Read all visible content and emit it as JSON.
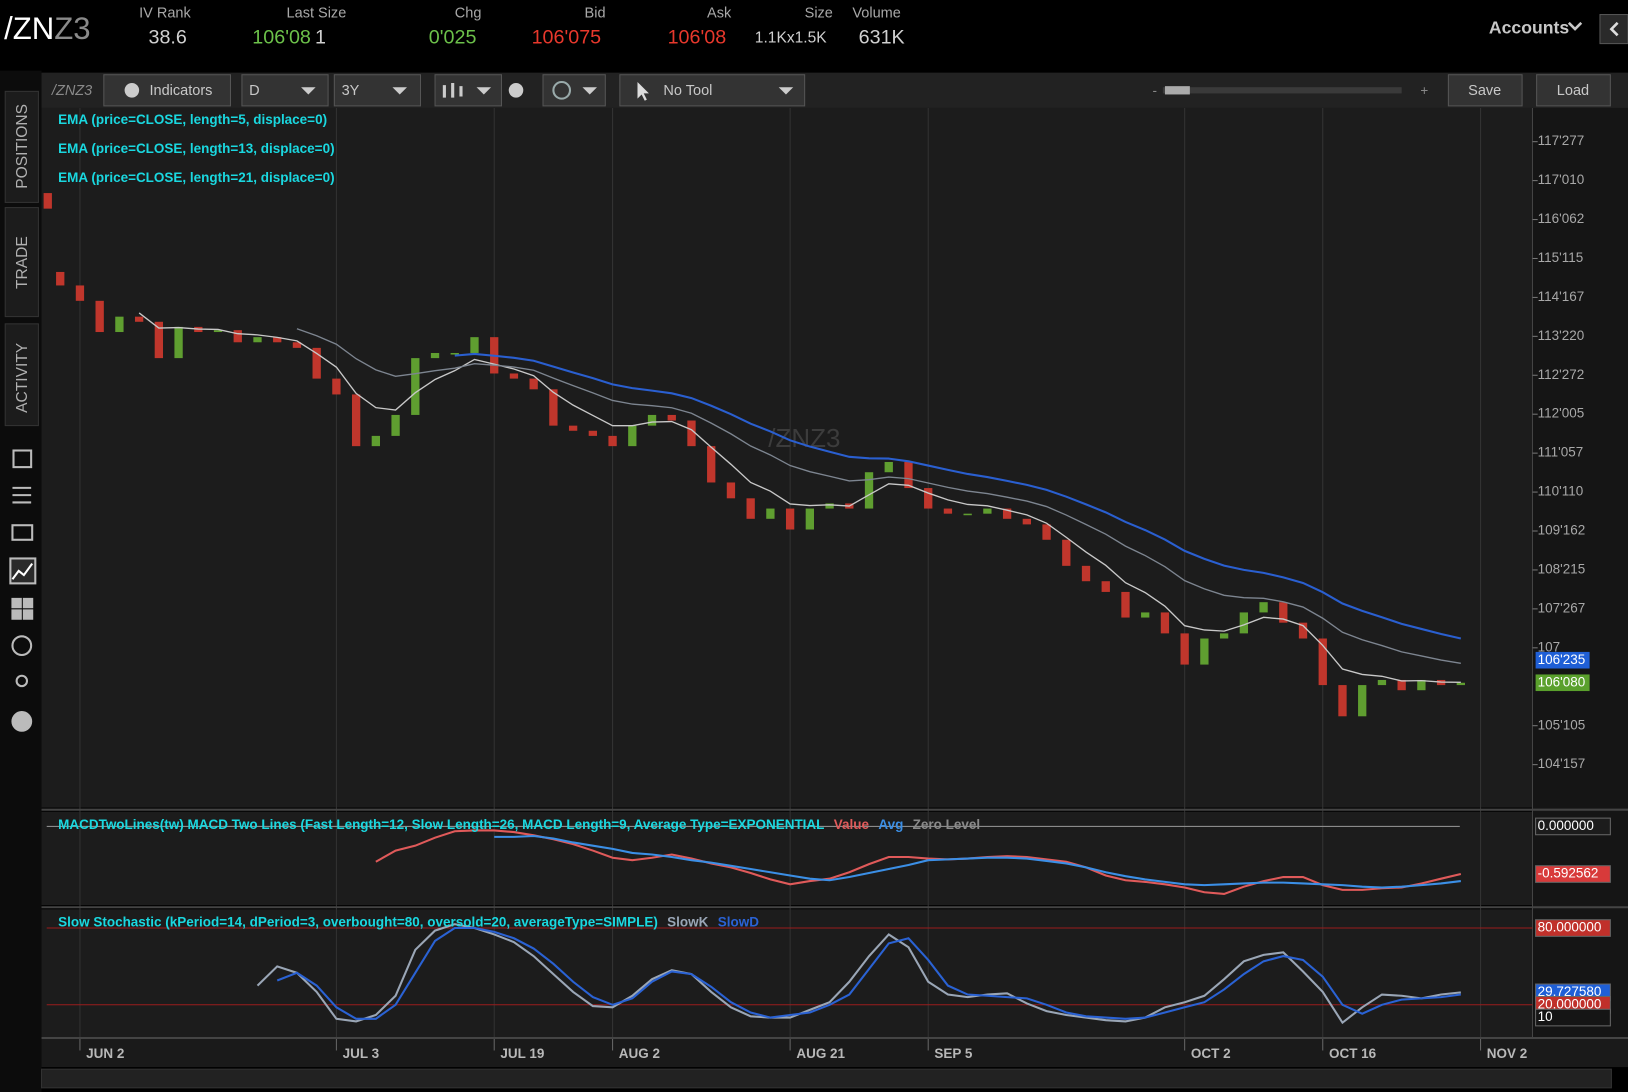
{
  "header": {
    "symbol": "/ZN",
    "symbol_suffix": "Z3",
    "fields": [
      {
        "label": "IV Rank",
        "value": "38.6"
      },
      {
        "label": "Last Size",
        "value": "106'08",
        "extra": "1"
      },
      {
        "label": "Chg",
        "value": "0'025"
      },
      {
        "label": "Bid",
        "value": "106'075"
      },
      {
        "label": "Ask",
        "value": "106'08"
      },
      {
        "label": "Size",
        "value": "1.1Kx1.5K"
      },
      {
        "label": "Volume",
        "value": "631K"
      }
    ],
    "accounts": "Accounts"
  },
  "toolbar": {
    "symbol": "/ZNZ3",
    "indicators": "Indicators",
    "aggregation": "D",
    "timeframe": "3Y",
    "tool": "No Tool",
    "zoom_out": "-",
    "zoom_in": "+",
    "save": "Save",
    "load": "Load"
  },
  "side_tabs": [
    "POSITIONS",
    "TRADE",
    "ACTIVITY"
  ],
  "chart_data": [
    {
      "type": "candlestick",
      "watermark": "/ZNZ3",
      "categories": [
        null,
        "JUN 2",
        null,
        null,
        null,
        null,
        null,
        null,
        null,
        null,
        null,
        null,
        null,
        null,
        "JUL 3",
        null,
        null,
        null,
        null,
        null,
        null,
        null,
        "JUL 19",
        null,
        null,
        null,
        null,
        null,
        "AUG 2",
        null,
        null,
        null,
        null,
        null,
        null,
        null,
        null,
        "AUG 21",
        null,
        null,
        null,
        null,
        null,
        null,
        "SEP 5",
        null,
        null,
        null,
        null,
        null,
        null,
        null,
        null,
        null,
        null,
        null,
        null,
        "OCT 2",
        null,
        null,
        null,
        null,
        null,
        null,
        "OCT 16",
        null,
        null,
        null,
        null,
        null,
        null,
        null,
        "NOV 2"
      ],
      "open": [
        115.07,
        114.78,
        114.45,
        113.78,
        114.11,
        114.0,
        113.22,
        113.89,
        113.78,
        113.82,
        113.56,
        113.67,
        113.56,
        113.44,
        112.78,
        112.44,
        111.33,
        111.55,
        112.0,
        113.22,
        113.33,
        113.33,
        113.67,
        112.89,
        112.78,
        112.55,
        111.77,
        111.66,
        111.55,
        111.33,
        111.77,
        112.0,
        111.88,
        111.33,
        110.55,
        110.21,
        109.77,
        109.99,
        109.54,
        109.99,
        110.1,
        109.99,
        110.77,
        110.99,
        110.43,
        109.99,
        109.88,
        109.88,
        109.99,
        109.77,
        109.65,
        109.32,
        108.76,
        108.43,
        108.2,
        107.65,
        107.76,
        107.31,
        106.64,
        107.2,
        107.31,
        107.76,
        107.98,
        107.54,
        107.2,
        106.2,
        105.53,
        106.2,
        106.31,
        106.09,
        106.31,
        106.2,
        null
      ],
      "close": [
        114.78,
        114.45,
        113.78,
        114.11,
        114.0,
        113.22,
        113.89,
        113.78,
        113.82,
        113.56,
        113.67,
        113.56,
        113.44,
        112.78,
        112.44,
        111.33,
        111.55,
        112.0,
        113.22,
        113.33,
        113.33,
        113.67,
        112.89,
        112.78,
        112.55,
        111.77,
        111.66,
        111.55,
        111.33,
        111.77,
        112.0,
        111.88,
        111.33,
        110.55,
        110.21,
        109.77,
        109.99,
        109.54,
        109.99,
        110.1,
        109.99,
        110.77,
        110.99,
        110.43,
        109.99,
        109.88,
        109.88,
        109.99,
        109.77,
        109.65,
        109.32,
        108.76,
        108.43,
        108.2,
        107.65,
        107.76,
        107.31,
        106.64,
        107.2,
        107.31,
        107.76,
        107.98,
        107.54,
        107.2,
        106.2,
        105.53,
        106.2,
        106.31,
        106.09,
        106.31,
        106.2,
        106.25,
        null
      ],
      "up_color": "#5f9e30",
      "down_color": "#c0362c",
      "ylim": [
        103.57,
        118.68
      ],
      "yticks": [
        {
          "value": 117.867,
          "label": "117'277"
        },
        {
          "value": 117.031,
          "label": "117'010"
        },
        {
          "value": 116.195,
          "label": "116'062"
        },
        {
          "value": 115.359,
          "label": "115'115"
        },
        {
          "value": 114.523,
          "label": "114'167"
        },
        {
          "value": 113.6875,
          "label": "113'220"
        },
        {
          "value": 112.852,
          "label": "112'272"
        },
        {
          "value": 112.016,
          "label": "112'005"
        },
        {
          "value": 111.18,
          "label": "111'057"
        },
        {
          "value": 110.344,
          "label": "110'110"
        },
        {
          "value": 109.508,
          "label": "109'162"
        },
        {
          "value": 108.672,
          "label": "108'215"
        },
        {
          "value": 107.836,
          "label": "107'267"
        },
        107,
        {
          "value": 105.328,
          "label": "105'105"
        },
        {
          "value": 104.492,
          "label": "104'157"
        }
      ],
      "price_markers": [
        {
          "value": 106.734,
          "label": "106'235",
          "color": "#1f5fd6"
        },
        {
          "value": 106.25,
          "label": "106'080",
          "color": "#5aa02c"
        }
      ],
      "studies": [
        {
          "name": "EMA (price=CLOSE, length=5, displace=0)",
          "length": 5,
          "color": "#c8c8c8"
        },
        {
          "name": "EMA (price=CLOSE, length=13, displace=0)",
          "length": 13,
          "color": "#7d8590"
        },
        {
          "name": "EMA (price=CLOSE, length=21, displace=0)",
          "length": 21,
          "color": "#2a5fd0"
        }
      ]
    },
    {
      "type": "line",
      "title": "MACDTwoLines(tw) MACD Two Lines (Fast Length=12, Slow Length=26, MACD Length=9, Average Type=EXPONENTIAL",
      "series": [
        {
          "name": "Value",
          "color": "#e05a5a",
          "values": [
            null,
            null,
            null,
            null,
            null,
            null,
            null,
            null,
            null,
            null,
            null,
            null,
            null,
            null,
            null,
            null,
            -0.44,
            -0.3,
            -0.24,
            -0.14,
            -0.06,
            -0.05,
            -0.05,
            -0.07,
            -0.11,
            -0.16,
            -0.22,
            -0.3,
            -0.39,
            -0.42,
            -0.39,
            -0.35,
            -0.4,
            -0.46,
            -0.51,
            -0.58,
            -0.66,
            -0.72,
            -0.68,
            -0.65,
            -0.57,
            -0.47,
            -0.38,
            -0.38,
            -0.4,
            -0.41,
            -0.4,
            -0.38,
            -0.37,
            -0.38,
            -0.41,
            -0.44,
            -0.51,
            -0.61,
            -0.67,
            -0.69,
            -0.72,
            -0.76,
            -0.82,
            -0.84,
            -0.75,
            -0.68,
            -0.63,
            -0.63,
            -0.73,
            -0.79,
            -0.79,
            -0.77,
            -0.76,
            -0.71,
            -0.65,
            -0.592562,
            null
          ]
        },
        {
          "name": "Avg",
          "color": "#3b8fe6",
          "values": [
            null,
            null,
            null,
            null,
            null,
            null,
            null,
            null,
            null,
            null,
            null,
            null,
            null,
            null,
            null,
            null,
            null,
            null,
            null,
            null,
            null,
            null,
            -0.13,
            -0.13,
            -0.12,
            -0.15,
            -0.2,
            -0.24,
            -0.28,
            -0.33,
            -0.35,
            -0.38,
            -0.42,
            -0.45,
            -0.49,
            -0.53,
            -0.57,
            -0.61,
            -0.65,
            -0.67,
            -0.63,
            -0.58,
            -0.53,
            -0.48,
            -0.42,
            -0.41,
            -0.4,
            -0.39,
            -0.39,
            -0.4,
            -0.43,
            -0.46,
            -0.51,
            -0.57,
            -0.62,
            -0.66,
            -0.69,
            -0.72,
            -0.73,
            -0.72,
            -0.71,
            -0.7,
            -0.7,
            -0.71,
            -0.72,
            -0.73,
            -0.75,
            -0.76,
            -0.75,
            -0.73,
            -0.71,
            -0.68,
            null
          ]
        }
      ],
      "zero_level": {
        "name": "Zero Level",
        "value": 0,
        "color": "#8a8a8a"
      },
      "ylim": [
        -0.98,
        0.17
      ],
      "yticks": [
        {
          "value": 0,
          "label": "0.000000"
        },
        {
          "value": -0.592562,
          "label": "-0.592562"
        }
      ],
      "tick_colors": [
        "#1c1c1c",
        "#d83a3a"
      ]
    },
    {
      "type": "line",
      "title": "Slow Stochastic (kPeriod=14, dPeriod=3, overbought=80, oversold=20, averageType=SIMPLE)",
      "series": [
        {
          "name": "SlowK",
          "color": "#9aa6b6",
          "values": [
            null,
            null,
            null,
            null,
            null,
            null,
            null,
            null,
            null,
            null,
            35,
            50,
            45,
            30,
            9,
            7,
            12,
            27,
            63,
            78,
            83,
            80,
            75,
            69,
            58,
            44,
            30,
            19,
            18,
            27,
            40,
            47,
            44,
            30,
            18,
            11,
            10,
            10,
            16,
            22,
            38,
            58,
            75,
            65,
            38,
            28,
            26,
            28,
            29,
            21,
            15,
            12,
            10,
            8,
            7,
            10,
            18,
            22,
            27,
            40,
            54,
            59,
            61,
            46,
            30,
            6,
            18,
            28,
            27,
            25,
            28,
            29.72758,
            null
          ]
        },
        {
          "name": "SlowD",
          "color": "#2a62d4",
          "values": [
            null,
            null,
            null,
            null,
            null,
            null,
            null,
            null,
            null,
            null,
            null,
            39,
            45,
            35,
            18,
            9,
            9,
            20,
            45,
            70,
            80,
            80,
            77,
            72,
            64,
            52,
            38,
            26,
            20,
            25,
            38,
            46,
            44,
            34,
            22,
            14,
            10,
            12,
            14,
            20,
            28,
            48,
            68,
            72,
            55,
            35,
            28,
            27,
            26,
            25,
            20,
            14,
            11,
            10,
            9,
            10,
            14,
            18,
            22,
            32,
            44,
            54,
            58,
            55,
            42,
            20,
            13,
            20,
            24,
            25,
            26,
            28,
            null
          ]
        }
      ],
      "ylim": [
        -6,
        91.4
      ],
      "yticks": [
        {
          "value": 80,
          "label": "80.000000"
        },
        {
          "value": 29.72758,
          "label": "29.727580"
        },
        {
          "value": 20,
          "label": "20.000000"
        },
        10
      ],
      "tick_colors": [
        "#c0302a",
        "#1f5fd6",
        "#c0302a",
        "#151515"
      ],
      "grid_lines": [
        80,
        20
      ],
      "grid_color": "#9a1c1c"
    }
  ]
}
